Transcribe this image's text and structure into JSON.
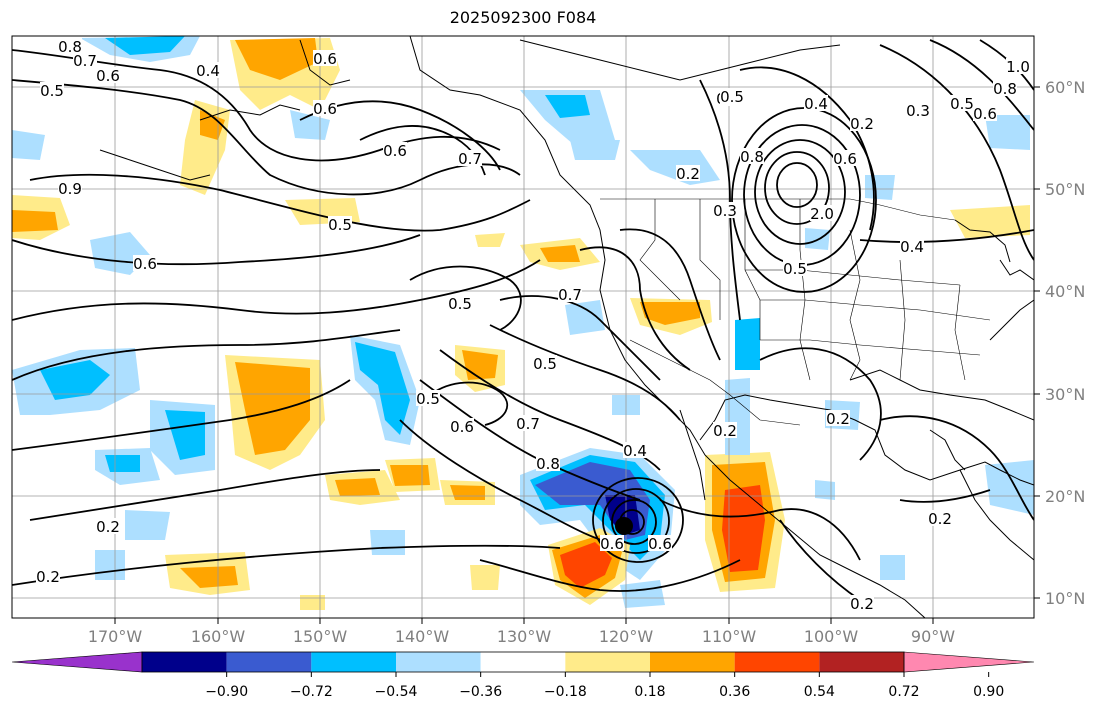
{
  "title": "2025092300 F084",
  "lat_labels": [
    "60°N",
    "50°N",
    "40°N",
    "30°N",
    "20°N",
    "10°N"
  ],
  "lon_labels": [
    "170°W",
    "160°W",
    "150°W",
    "140°W",
    "130°W",
    "120°W",
    "110°W",
    "100°W",
    "90°W"
  ],
  "colorbar": {
    "ticks": [
      "−0.90",
      "−0.72",
      "−0.54",
      "−0.36",
      "−0.18",
      "0.18",
      "0.36",
      "0.54",
      "0.72",
      "0.90"
    ],
    "colors": [
      "#9932CC",
      "#00008B",
      "#3A5BD0",
      "#00BFFF",
      "#ADDFFF",
      "#FFFFFF",
      "#FFEB8A",
      "#FFA500",
      "#FF4500",
      "#B22222",
      "#FF88B0"
    ]
  },
  "contour_labels": [
    "0.8",
    "0.7",
    "0.6",
    "0.5",
    "0.4",
    "0.6",
    "0.6",
    "0.7",
    "0.5",
    "0.6",
    "0.9",
    "0.6",
    "0.5",
    "0.7",
    "0.5",
    "0.5",
    "0.5",
    "0.6",
    "0.7",
    "0.8",
    "0.4",
    "0.6",
    "0.2",
    "0.2",
    "0.2",
    "0.2",
    "0.3",
    "0.8",
    "0.5",
    "0.4",
    "0.2",
    "0.6",
    "2.0",
    "0.5",
    "0.4",
    "0.2",
    "0.2",
    "0.2",
    "0.6",
    "1.0",
    "0.8",
    "0.6",
    "0.5",
    "0.3"
  ],
  "marker": {
    "name": "storm-center"
  }
}
